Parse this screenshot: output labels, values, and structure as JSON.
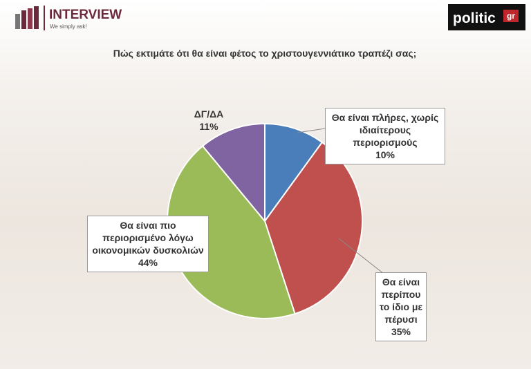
{
  "header": {
    "brand": "INTERVIEW",
    "tagline": "We simply ask!",
    "source": "politic",
    "source_suffix": "gr"
  },
  "chart_data": {
    "type": "pie",
    "title": "Πώς εκτιμάτε ότι θα είναι φέτος το χριστουγεννιάτικο τραπέζι σας;",
    "categories": [
      "Θα είναι πλήρες, χωρίς ιδιαίτερους περιορισμούς",
      "Θα είναι περίπου το ίδιο με πέρυσι",
      "Θα είναι πιο περιορισμένο λόγω οικονομικών δυσκολιών",
      "ΔΓ/ΔΑ"
    ],
    "values": [
      10,
      35,
      44,
      11
    ],
    "value_labels": [
      "10%",
      "35%",
      "44%",
      "11%"
    ],
    "colors": [
      "#4a7ebb",
      "#c0504d",
      "#9bbb59",
      "#8064a2"
    ]
  }
}
